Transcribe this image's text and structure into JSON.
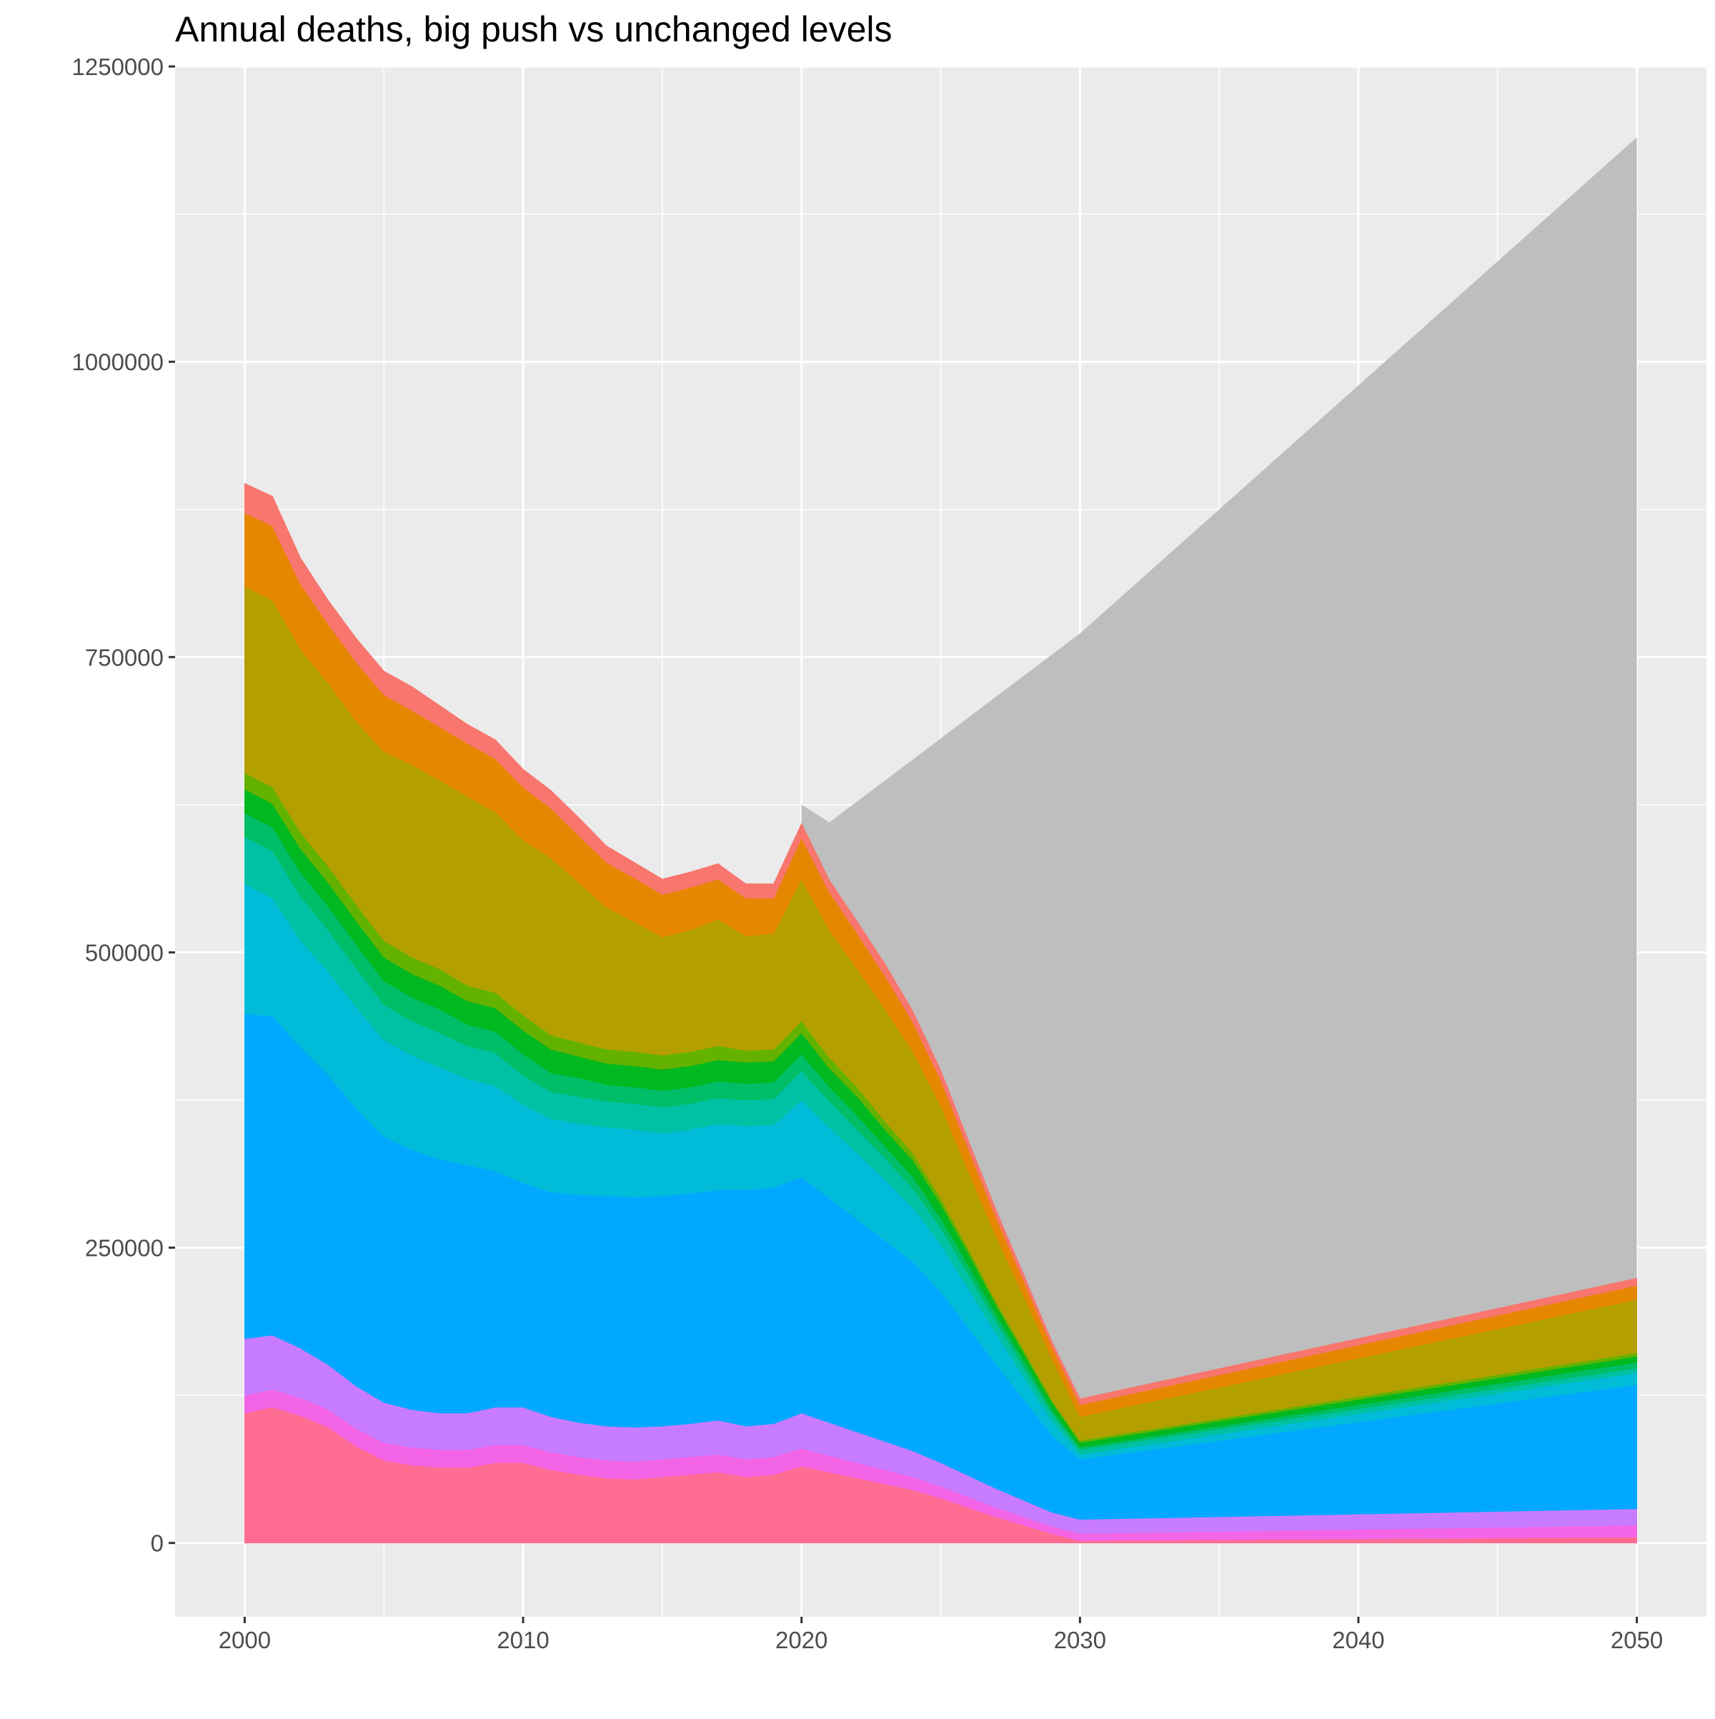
{
  "chart_data": {
    "type": "area",
    "title": "Annual deaths, big push vs unchanged levels",
    "xlabel": "",
    "ylabel": "",
    "x_ticks": [
      "2000",
      "2010",
      "2020",
      "2030",
      "2040",
      "2050"
    ],
    "y_ticks": [
      "0",
      "250000",
      "500000",
      "750000",
      "1000000",
      "1250000"
    ],
    "xlim": [
      1997.5,
      2052.5
    ],
    "ylim": [
      -62500,
      1250000
    ],
    "grid": true,
    "legend": "none",
    "stacked": true,
    "background_color": "#ebebeb",
    "unchanged_levels": {
      "color": "#bebebe",
      "x": [
        2020,
        2021,
        2030,
        2050
      ],
      "y": [
        625000,
        610000,
        770000,
        1190000
      ]
    },
    "x": [
      2000,
      2001,
      2002,
      2003,
      2004,
      2005,
      2006,
      2007,
      2008,
      2009,
      2010,
      2011,
      2012,
      2013,
      2014,
      2015,
      2016,
      2017,
      2018,
      2019,
      2020,
      2021,
      2022,
      2023,
      2024,
      2025,
      2026,
      2027,
      2028,
      2029,
      2030,
      2050
    ],
    "series": [
      {
        "color": "#ff6c91",
        "values": [
          110000,
          115000,
          108000,
          98000,
          82000,
          70000,
          66000,
          64000,
          64000,
          68000,
          68000,
          62000,
          58000,
          55000,
          54000,
          56000,
          58000,
          60000,
          56000,
          58000,
          65000,
          60000,
          55000,
          50000,
          45000,
          38000,
          30000,
          22000,
          15000,
          8000,
          2000,
          5000
        ]
      },
      {
        "color": "#f365e6",
        "values": [
          15000,
          15000,
          15000,
          15000,
          15000,
          15000,
          15000,
          15000,
          15000,
          15000,
          15000,
          15000,
          15000,
          15000,
          15000,
          15000,
          15000,
          15000,
          15000,
          15000,
          15000,
          14000,
          13000,
          12000,
          11000,
          10000,
          9000,
          8000,
          7000,
          6000,
          6000,
          10000
        ]
      },
      {
        "color": "#c77cff",
        "values": [
          48000,
          46000,
          42000,
          38000,
          36000,
          34000,
          32000,
          31000,
          31000,
          32000,
          32000,
          30000,
          29000,
          29000,
          29000,
          28000,
          28000,
          29000,
          28000,
          28000,
          30000,
          28000,
          26000,
          24000,
          22000,
          20000,
          18000,
          16000,
          14000,
          12000,
          12000,
          14000
        ]
      },
      {
        "color": "#00a9ff",
        "values": [
          275000,
          270000,
          255000,
          245000,
          235000,
          225000,
          220000,
          215000,
          210000,
          200000,
          190000,
          190000,
          193000,
          195000,
          195000,
          195000,
          195000,
          195000,
          200000,
          200000,
          200000,
          190000,
          180000,
          170000,
          160000,
          145000,
          125000,
          105000,
          85000,
          65000,
          51000,
          105000
        ]
      },
      {
        "color": "#00bcd8",
        "values": [
          110000,
          100000,
          90000,
          88000,
          86000,
          82000,
          80000,
          78000,
          73000,
          72000,
          66000,
          62000,
          60000,
          58000,
          57000,
          53000,
          54000,
          56000,
          54000,
          53000,
          65000,
          60000,
          56000,
          52000,
          46000,
          40000,
          33000,
          26000,
          19000,
          12000,
          4000,
          10000
        ]
      },
      {
        "color": "#00c1a3",
        "values": [
          40000,
          40000,
          38000,
          35000,
          33000,
          30000,
          29000,
          29000,
          28000,
          28000,
          25000,
          23000,
          23000,
          22000,
          22000,
          22000,
          22000,
          22000,
          22000,
          22000,
          25000,
          22000,
          20000,
          18000,
          16000,
          14000,
          12000,
          10000,
          8000,
          6000,
          4000,
          4000
        ]
      },
      {
        "color": "#00be67",
        "values": [
          20000,
          20000,
          20000,
          20000,
          20000,
          20000,
          20000,
          20000,
          18000,
          18000,
          18000,
          16000,
          16000,
          14000,
          14000,
          14000,
          14000,
          14000,
          14000,
          14000,
          14000,
          12000,
          12000,
          10000,
          10000,
          8000,
          8000,
          6000,
          6000,
          4000,
          2000,
          5000
        ]
      },
      {
        "color": "#00b81f",
        "values": [
          20000,
          20000,
          20000,
          20000,
          20000,
          20000,
          20000,
          20000,
          20000,
          20000,
          20000,
          20000,
          18000,
          18000,
          18000,
          18000,
          18000,
          18000,
          18000,
          18000,
          18000,
          16000,
          16000,
          14000,
          14000,
          12000,
          10000,
          8000,
          6000,
          6000,
          4000,
          5000
        ]
      },
      {
        "color": "#64b200",
        "values": [
          14000,
          14000,
          14000,
          14000,
          14000,
          14000,
          14000,
          14000,
          13000,
          13000,
          13000,
          12000,
          12000,
          12000,
          12000,
          12000,
          12000,
          12000,
          10000,
          10000,
          10000,
          9000,
          8000,
          7000,
          6000,
          5000,
          4000,
          3000,
          3000,
          2000,
          2000,
          3000
        ]
      },
      {
        "color": "#b3a000",
        "values": [
          158000,
          158000,
          155000,
          155000,
          155000,
          160000,
          163000,
          160000,
          160000,
          153000,
          148000,
          150000,
          135000,
          120000,
          110000,
          100000,
          103000,
          107000,
          97000,
          98000,
          120000,
          108000,
          100000,
          95000,
          86000,
          78000,
          65000,
          55000,
          45000,
          35000,
          20000,
          45000
        ]
      },
      {
        "color": "#e58700",
        "values": [
          62000,
          63000,
          55000,
          50000,
          50000,
          48000,
          46000,
          45000,
          45000,
          45000,
          45000,
          42000,
          40000,
          38000,
          37000,
          36000,
          36000,
          34000,
          32000,
          30000,
          35000,
          32000,
          30000,
          28000,
          25000,
          22000,
          19000,
          16000,
          13000,
          10000,
          10000,
          12000
        ]
      },
      {
        "color": "#f8766d",
        "values": [
          25000,
          25000,
          22000,
          20000,
          20000,
          20000,
          20000,
          18000,
          16000,
          16000,
          15000,
          15000,
          15000,
          14000,
          13000,
          13000,
          13000,
          13000,
          12000,
          12000,
          12000,
          10000,
          10000,
          10000,
          9000,
          8000,
          7000,
          6000,
          5000,
          4000,
          5000,
          6000
        ]
      }
    ]
  }
}
